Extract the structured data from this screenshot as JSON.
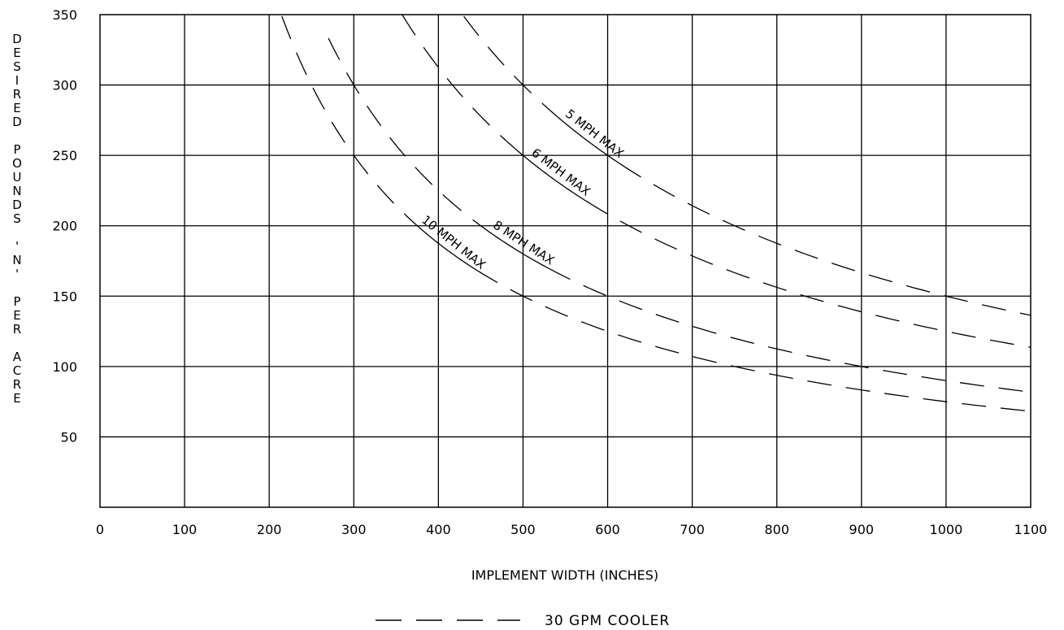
{
  "chart_data": {
    "type": "line",
    "xlabel": "IMPLEMENT WIDTH (INCHES)",
    "ylabel_words": [
      "DESIRED",
      "POUNDS",
      "'N'",
      "PER",
      "ACRE"
    ],
    "xlim": [
      0,
      1100
    ],
    "ylim": [
      0,
      350
    ],
    "x_ticks": [
      0,
      100,
      200,
      300,
      400,
      500,
      600,
      700,
      800,
      900,
      1000,
      1100
    ],
    "x_tick_labels": [
      "0",
      "100",
      "200",
      "300",
      "400",
      "500",
      "600",
      "700",
      "800",
      "900",
      "1000",
      "1100"
    ],
    "y_ticks": [
      50,
      100,
      150,
      200,
      250,
      300,
      350
    ],
    "y_tick_labels": [
      "50",
      "100",
      "150",
      "200",
      "250",
      "300",
      "350"
    ],
    "grid": true,
    "legend": {
      "position": "bottom",
      "entries": [
        {
          "label": "30 GPM COOLER",
          "style": "dashed"
        }
      ]
    },
    "series": [
      {
        "name": "5 MPH MAX",
        "k": 150000,
        "x_start": 430,
        "x_end": 1100,
        "label_x": 545,
        "label_y": 272
      },
      {
        "name": "6 MPH MAX",
        "k": 125000,
        "x_start": 357,
        "x_end": 1100,
        "label_x": 505,
        "label_y": 222
      },
      {
        "name": "8 MPH MAX",
        "k": 90000,
        "x_start": 270,
        "x_end": 1100,
        "label_x": 460,
        "label_y": 185
      },
      {
        "name": "10 MPH MAX",
        "k": 75000,
        "x_start": 215,
        "x_end": 1100,
        "label_x": 375,
        "label_y": 165
      }
    ]
  }
}
